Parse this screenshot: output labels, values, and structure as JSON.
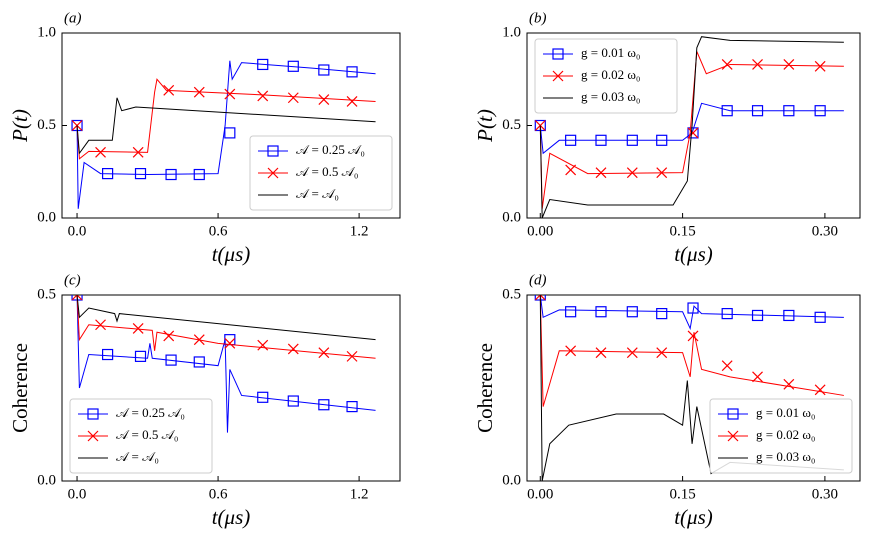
{
  "chart_data": [
    {
      "type": "line",
      "title": "(a)",
      "xlabel": "t(μs)",
      "ylabel": "P(t)",
      "legend": "lower right",
      "xlim": [
        -0.064,
        1.374
      ],
      "ylim": [
        0,
        1
      ],
      "xticks": [
        {
          "value": 0,
          "label": "0.0"
        },
        0.6,
        1.2
      ],
      "yticks": [
        {
          "value": 0,
          "label": "0.0"
        },
        0.5,
        {
          "value": 1,
          "label": "1.0"
        }
      ],
      "series": [
        {
          "name": "𝒜 = 0.25 𝒜₀",
          "color": "#0000ff",
          "marker": "s",
          "x": [
            0,
            0.005,
            0.03,
            0.1,
            0.3,
            0.6,
            0.63,
            0.65,
            0.66,
            0.7,
            1.0,
            1.27
          ],
          "values": [
            0.5,
            0.05,
            0.3,
            0.24,
            0.235,
            0.24,
            0.5,
            0.85,
            0.75,
            0.84,
            0.81,
            0.78
          ],
          "marker_x": [
            0,
            0.13,
            0.27,
            0.4,
            0.52,
            0.65,
            0.79,
            0.92,
            1.05,
            1.17
          ],
          "marker_values": [
            0.5,
            0.24,
            0.24,
            0.235,
            0.235,
            0.46,
            0.83,
            0.82,
            0.8,
            0.79
          ]
        },
        {
          "name": "𝒜 = 0.5 𝒜₀",
          "color": "#ff0000",
          "marker": "x",
          "x": [
            0,
            0.01,
            0.05,
            0.3,
            0.33,
            0.34,
            0.38,
            0.8,
            1.27
          ],
          "values": [
            0.5,
            0.32,
            0.36,
            0.355,
            0.68,
            0.75,
            0.69,
            0.665,
            0.63
          ],
          "marker_x": [
            0,
            0.1,
            0.26,
            0.39,
            0.52,
            0.65,
            0.79,
            0.92,
            1.05,
            1.17
          ],
          "marker_values": [
            0.5,
            0.355,
            0.355,
            0.69,
            0.68,
            0.67,
            0.66,
            0.65,
            0.64,
            0.63
          ]
        },
        {
          "name": "𝒜 = 𝒜₀",
          "color": "#000000",
          "x": [
            0,
            0.01,
            0.05,
            0.15,
            0.17,
            0.19,
            0.25,
            1.27
          ],
          "values": [
            0.5,
            0.35,
            0.42,
            0.42,
            0.65,
            0.58,
            0.6,
            0.52
          ]
        }
      ]
    },
    {
      "type": "line",
      "title": "(b)",
      "xlabel": "t(μs)",
      "ylabel": "P(t)",
      "legend": "upper left",
      "xlim": [
        -0.014,
        0.337
      ],
      "ylim": [
        0,
        1
      ],
      "xticks": [
        {
          "value": 0,
          "label": "0.00"
        },
        {
          "value": 0.15,
          "label": "0.15"
        },
        {
          "value": 0.3,
          "label": "0.30"
        }
      ],
      "yticks": [
        {
          "value": 0,
          "label": "0.0"
        },
        0.5,
        {
          "value": 1,
          "label": "1.0"
        }
      ],
      "series": [
        {
          "name": "g = 0.01 ω₀",
          "color": "#0000ff",
          "marker": "s",
          "x": [
            0,
            0.003,
            0.02,
            0.15,
            0.16,
            0.17,
            0.2,
            0.32
          ],
          "values": [
            0.5,
            0.35,
            0.42,
            0.42,
            0.46,
            0.62,
            0.58,
            0.58
          ],
          "marker_x": [
            0,
            0.032,
            0.064,
            0.097,
            0.128,
            0.161,
            0.197,
            0.229,
            0.262,
            0.295
          ],
          "marker_values": [
            0.5,
            0.42,
            0.42,
            0.42,
            0.42,
            0.46,
            0.58,
            0.58,
            0.58,
            0.58
          ]
        },
        {
          "name": "g = 0.02 ω₀",
          "color": "#ff0000",
          "marker": "x",
          "x": [
            0,
            0.002,
            0.01,
            0.05,
            0.15,
            0.158,
            0.165,
            0.175,
            0.2,
            0.32
          ],
          "values": [
            0.5,
            0.05,
            0.35,
            0.24,
            0.245,
            0.46,
            0.9,
            0.78,
            0.83,
            0.82
          ],
          "marker_x": [
            0,
            0.032,
            0.064,
            0.097,
            0.128,
            0.161,
            0.197,
            0.229,
            0.262,
            0.295
          ],
          "marker_values": [
            0.5,
            0.26,
            0.245,
            0.245,
            0.245,
            0.46,
            0.83,
            0.83,
            0.83,
            0.82
          ]
        },
        {
          "name": "g = 0.03 ω₀",
          "color": "#000000",
          "x": [
            0,
            0.002,
            0.01,
            0.05,
            0.14,
            0.155,
            0.16,
            0.165,
            0.17,
            0.2,
            0.32
          ],
          "values": [
            0.5,
            0,
            0.1,
            0.07,
            0.07,
            0.2,
            0.5,
            0.92,
            0.98,
            0.96,
            0.95
          ]
        }
      ]
    },
    {
      "type": "line",
      "title": "(c)",
      "xlabel": "t(μs)",
      "ylabel": "Coherence",
      "legend": "lower left",
      "xlim": [
        -0.064,
        1.374
      ],
      "ylim": [
        0,
        0.5
      ],
      "xticks": [
        {
          "value": 0,
          "label": "0.0"
        },
        0.6,
        1.2
      ],
      "yticks": [
        {
          "value": 0,
          "label": "0.0"
        },
        0.5
      ],
      "series": [
        {
          "name": "𝒜 = 0.25 𝒜₀",
          "color": "#0000ff",
          "marker": "s",
          "x": [
            0,
            0.01,
            0.05,
            0.3,
            0.31,
            0.32,
            0.6,
            0.63,
            0.64,
            0.65,
            0.7,
            1.27
          ],
          "values": [
            0.5,
            0.25,
            0.34,
            0.33,
            0.37,
            0.33,
            0.31,
            0.38,
            0.13,
            0.3,
            0.23,
            0.19
          ],
          "marker_x": [
            0,
            0.13,
            0.27,
            0.4,
            0.52,
            0.65,
            0.79,
            0.92,
            1.05,
            1.17
          ],
          "marker_values": [
            0.5,
            0.34,
            0.335,
            0.325,
            0.32,
            0.38,
            0.225,
            0.215,
            0.205,
            0.2
          ]
        },
        {
          "name": "𝒜 = 0.5 𝒜₀",
          "color": "#ff0000",
          "marker": "x",
          "x": [
            0,
            0.01,
            0.05,
            0.32,
            0.33,
            0.34,
            0.6,
            1.27
          ],
          "values": [
            0.5,
            0.38,
            0.42,
            0.405,
            0.35,
            0.4,
            0.37,
            0.33
          ],
          "marker_x": [
            0,
            0.1,
            0.26,
            0.39,
            0.52,
            0.65,
            0.79,
            0.92,
            1.05,
            1.17
          ],
          "marker_values": [
            0.5,
            0.42,
            0.41,
            0.39,
            0.38,
            0.37,
            0.365,
            0.355,
            0.345,
            0.335
          ]
        },
        {
          "name": "𝒜 = 𝒜₀",
          "color": "#000000",
          "x": [
            0,
            0.01,
            0.05,
            0.16,
            0.17,
            0.18,
            1.27
          ],
          "values": [
            0.5,
            0.44,
            0.465,
            0.45,
            0.43,
            0.45,
            0.38
          ]
        }
      ]
    },
    {
      "type": "line",
      "title": "(d)",
      "xlabel": "t(μs)",
      "ylabel": "Coherence",
      "legend": "lower right",
      "xlim": [
        -0.014,
        0.337
      ],
      "ylim": [
        0,
        0.5
      ],
      "xticks": [
        {
          "value": 0,
          "label": "0.00"
        },
        {
          "value": 0.15,
          "label": "0.15"
        },
        {
          "value": 0.3,
          "label": "0.30"
        }
      ],
      "yticks": [
        {
          "value": 0,
          "label": "0.0"
        },
        0.5
      ],
      "series": [
        {
          "name": "g = 0.01 ω₀",
          "color": "#0000ff",
          "marker": "s",
          "x": [
            0,
            0.003,
            0.02,
            0.15,
            0.158,
            0.162,
            0.17,
            0.32
          ],
          "values": [
            0.5,
            0.44,
            0.46,
            0.455,
            0.41,
            0.47,
            0.45,
            0.44
          ],
          "marker_x": [
            0,
            0.032,
            0.064,
            0.097,
            0.128,
            0.161,
            0.197,
            0.229,
            0.262,
            0.295
          ],
          "marker_values": [
            0.5,
            0.455,
            0.455,
            0.455,
            0.45,
            0.465,
            0.45,
            0.445,
            0.445,
            0.44
          ]
        },
        {
          "name": "g = 0.02 ω₀",
          "color": "#ff0000",
          "marker": "x",
          "x": [
            0,
            0.003,
            0.02,
            0.15,
            0.158,
            0.162,
            0.17,
            0.2,
            0.32
          ],
          "values": [
            0.5,
            0.2,
            0.35,
            0.345,
            0.28,
            0.4,
            0.3,
            0.28,
            0.23
          ],
          "marker_x": [
            0,
            0.032,
            0.064,
            0.097,
            0.128,
            0.161,
            0.197,
            0.229,
            0.262,
            0.295
          ],
          "marker_values": [
            0.5,
            0.35,
            0.345,
            0.345,
            0.345,
            0.39,
            0.31,
            0.28,
            0.26,
            0.245
          ]
        },
        {
          "name": "g = 0.03 ω₀",
          "color": "#000000",
          "x": [
            0,
            0.002,
            0.01,
            0.03,
            0.08,
            0.13,
            0.15,
            0.155,
            0.16,
            0.165,
            0.18,
            0.2,
            0.32
          ],
          "values": [
            0.5,
            0,
            0.1,
            0.15,
            0.18,
            0.18,
            0.15,
            0.27,
            0.1,
            0.2,
            0.02,
            0.05,
            0.03
          ]
        }
      ]
    }
  ]
}
